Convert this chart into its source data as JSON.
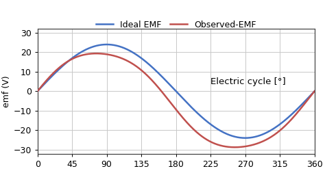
{
  "title": "",
  "xlabel_inside": "Electric cycle [°]",
  "ylabel": "emf (V)",
  "xlim": [
    0,
    360
  ],
  "ylim": [
    -32,
    32
  ],
  "xticks": [
    0,
    45,
    90,
    135,
    180,
    225,
    270,
    315,
    360
  ],
  "yticks": [
    -30,
    -20,
    -10,
    0,
    10,
    20,
    30
  ],
  "ideal_color": "#4472C4",
  "observed_color": "#C0504D",
  "ideal_label": "Ideal EMF",
  "observed_label": "Observed-EMF",
  "ideal_amplitude": 24.0,
  "line_width": 1.8,
  "background_color": "#ffffff",
  "grid_color": "#c8c8c8",
  "annotation_fontsize": 9.5,
  "tick_fontsize": 9,
  "ylabel_fontsize": 9,
  "legend_fontsize": 9
}
